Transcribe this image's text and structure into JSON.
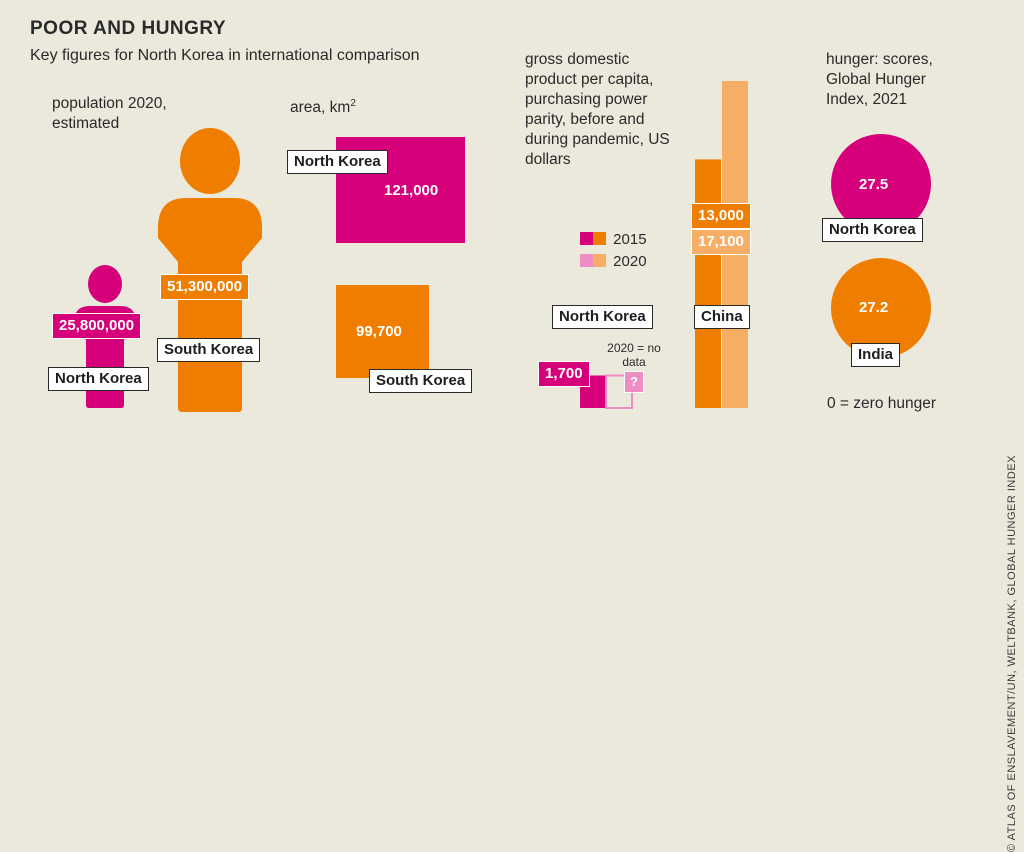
{
  "title": "POOR AND HUNGRY",
  "subtitle": "Key figures for North Korea in international comparison",
  "colors": {
    "north_korea": "#d6007a",
    "north_korea_light": "#ee8cc4",
    "other": "#ef7d00",
    "other_light": "#f6ad66",
    "background": "#ebe8dc"
  },
  "credit": "© ATLAS OF ENSLAVEMENT/UN, WELTBANK, GLOBAL HUNGER INDEX",
  "chart_data": [
    {
      "type": "pictogram",
      "title": "population 2020, estimated",
      "categories": [
        "North Korea",
        "South Korea"
      ],
      "values": [
        25800000,
        51300000
      ],
      "value_labels": [
        "25,800,000",
        "51,300,000"
      ]
    },
    {
      "type": "area-squares",
      "title": "area, km²",
      "categories": [
        "North Korea",
        "South Korea"
      ],
      "values": [
        121000,
        99700
      ],
      "value_labels": [
        "121,000",
        "99,700"
      ]
    },
    {
      "type": "bar",
      "title": "gross domestic product per capita, purchasing power parity, before and during pandemic, US dollars",
      "categories": [
        "North Korea",
        "China"
      ],
      "series": [
        {
          "name": "2015",
          "values": [
            1700,
            13000
          ],
          "value_labels": [
            "1,700",
            "13,000"
          ]
        },
        {
          "name": "2020",
          "values": [
            null,
            17100
          ],
          "value_labels": [
            "?",
            "17,100"
          ]
        }
      ],
      "annotation": "2020 = no data",
      "ylim": [
        0,
        17100
      ]
    },
    {
      "type": "bubble",
      "title": "hunger: scores, Global Hunger Index, 2021",
      "categories": [
        "North Korea",
        "India"
      ],
      "values": [
        27.5,
        27.2
      ],
      "value_labels": [
        "27.5",
        "27.2"
      ],
      "annotation": "0 = zero hunger"
    }
  ]
}
